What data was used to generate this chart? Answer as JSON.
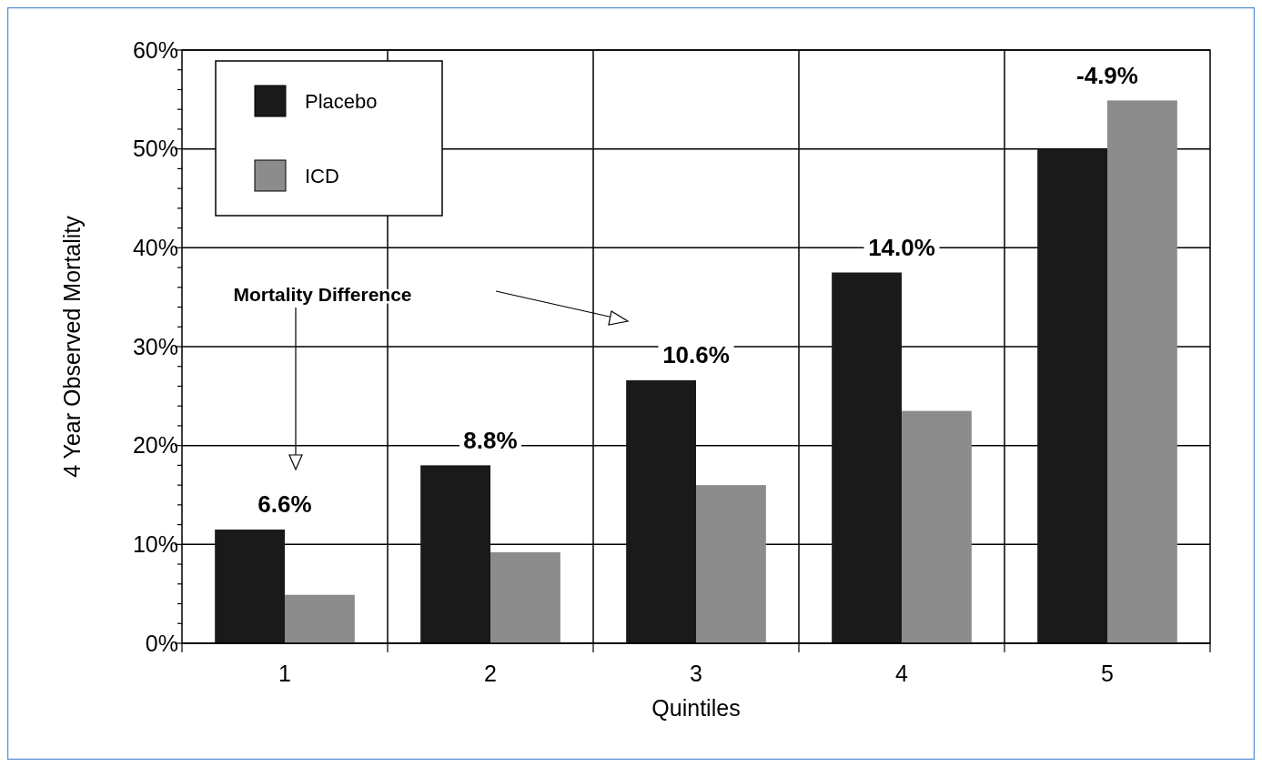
{
  "chart_data": {
    "type": "bar",
    "xlabel": "Quintiles",
    "ylabel": "4 Year Observed Mortality",
    "categories": [
      "1",
      "2",
      "3",
      "4",
      "5"
    ],
    "series": [
      {
        "name": "Placebo",
        "color": "#1a1a1a",
        "values": [
          11.5,
          18.0,
          26.6,
          37.5,
          50.0
        ]
      },
      {
        "name": "ICD",
        "color": "#8c8c8c",
        "values": [
          4.9,
          9.2,
          16.0,
          23.5,
          54.9
        ]
      }
    ],
    "ylim": [
      0,
      60
    ],
    "yticks": [
      {
        "value": 0,
        "label": "0%"
      },
      {
        "value": 2,
        "label": null
      },
      {
        "value": 4,
        "label": null
      },
      {
        "value": 6,
        "label": null
      },
      {
        "value": 8,
        "label": null
      },
      {
        "value": 10,
        "label": "10%"
      },
      {
        "value": 12,
        "label": null
      },
      {
        "value": 14,
        "label": null
      },
      {
        "value": 16,
        "label": null
      },
      {
        "value": 18,
        "label": null
      },
      {
        "value": 20,
        "label": "20%"
      },
      {
        "value": 22,
        "label": null
      },
      {
        "value": 24,
        "label": null
      },
      {
        "value": 26,
        "label": null
      },
      {
        "value": 28,
        "label": null
      },
      {
        "value": 30,
        "label": "30%"
      },
      {
        "value": 32,
        "label": null
      },
      {
        "value": 34,
        "label": null
      },
      {
        "value": 36,
        "label": null
      },
      {
        "value": 38,
        "label": null
      },
      {
        "value": 40,
        "label": "40%"
      },
      {
        "value": 42,
        "label": null
      },
      {
        "value": 44,
        "label": null
      },
      {
        "value": 46,
        "label": null
      },
      {
        "value": 48,
        "label": null
      },
      {
        "value": 50,
        "label": "50%"
      },
      {
        "value": 52,
        "label": null
      },
      {
        "value": 54,
        "label": null
      },
      {
        "value": 56,
        "label": null
      },
      {
        "value": 58,
        "label": null
      },
      {
        "value": 60,
        "label": "60%"
      }
    ],
    "grid": true,
    "legend": "top left",
    "annotations": [
      "6.6%",
      "8.8%",
      "10.6%",
      "14.0%",
      "-4.9%",
      "Mortality Difference"
    ]
  }
}
